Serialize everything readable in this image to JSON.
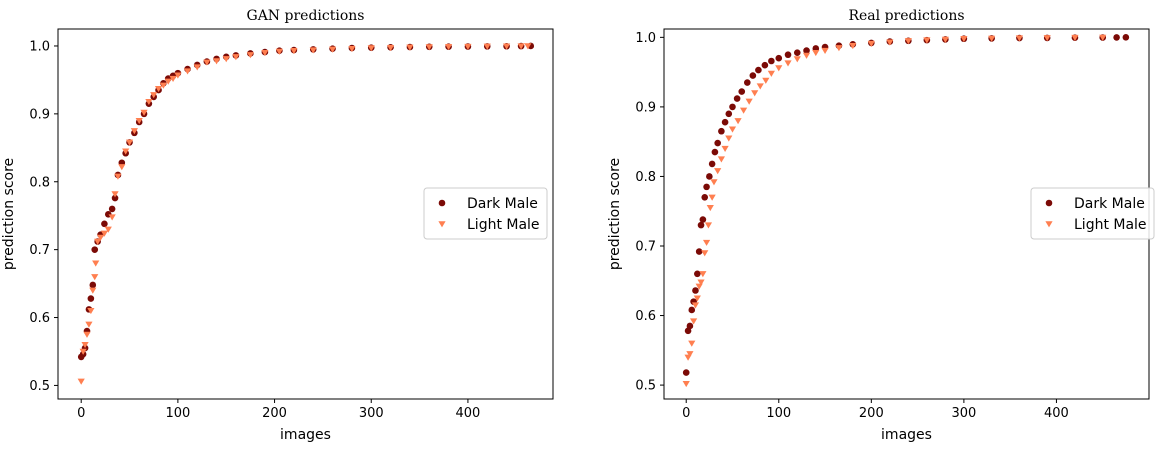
{
  "chart_data": [
    {
      "type": "scatter",
      "title": "GAN predictions",
      "xlabel": "images",
      "ylabel": "prediction score",
      "xlim": [
        -24,
        488
      ],
      "ylim": [
        0.48,
        1.025
      ],
      "xticks": [
        0,
        100,
        200,
        300,
        400
      ],
      "yticks": [
        0.5,
        0.6,
        0.7,
        0.8,
        0.9,
        1.0
      ],
      "xtick_labels": [
        "0",
        "100",
        "200",
        "300",
        "400"
      ],
      "ytick_labels": [
        "0.5",
        "0.6",
        "0.7",
        "0.8",
        "0.9",
        "1.0"
      ],
      "legend_position": "center-right",
      "series": [
        {
          "name": "Dark Male",
          "color": "#7b0a06",
          "marker": "circle",
          "x": [
            0,
            2,
            4,
            6,
            8,
            10,
            12,
            14,
            17,
            20,
            24,
            28,
            32,
            35,
            38,
            42,
            46,
            50,
            55,
            60,
            65,
            70,
            75,
            80,
            85,
            90,
            95,
            100,
            110,
            120,
            130,
            140,
            150,
            160,
            175,
            190,
            205,
            220,
            240,
            260,
            280,
            300,
            320,
            340,
            360,
            380,
            400,
            420,
            440,
            455,
            465
          ],
          "y": [
            0.542,
            0.546,
            0.555,
            0.58,
            0.612,
            0.628,
            0.648,
            0.7,
            0.712,
            0.722,
            0.738,
            0.752,
            0.76,
            0.776,
            0.81,
            0.828,
            0.842,
            0.858,
            0.872,
            0.888,
            0.9,
            0.915,
            0.925,
            0.935,
            0.945,
            0.952,
            0.956,
            0.96,
            0.966,
            0.972,
            0.977,
            0.981,
            0.984,
            0.986,
            0.989,
            0.991,
            0.993,
            0.994,
            0.995,
            0.996,
            0.997,
            0.9975,
            0.998,
            0.9985,
            0.9988,
            0.999,
            0.9992,
            0.9994,
            0.9996,
            0.9998,
            1.0
          ]
        },
        {
          "name": "Light Male",
          "color": "#ff7f50",
          "marker": "triangle-down",
          "x": [
            0,
            2,
            4,
            6,
            8,
            10,
            12,
            14,
            15,
            17,
            20,
            24,
            28,
            32,
            35,
            38,
            42,
            46,
            50,
            55,
            60,
            65,
            70,
            75,
            80,
            85,
            90,
            95,
            100,
            110,
            120,
            130,
            140,
            150,
            160,
            175,
            190,
            205,
            220,
            240,
            260,
            280,
            300,
            320,
            340,
            360,
            380,
            400,
            420,
            440,
            455,
            462
          ],
          "y": [
            0.506,
            0.55,
            0.56,
            0.575,
            0.59,
            0.61,
            0.64,
            0.66,
            0.68,
            0.712,
            0.718,
            0.724,
            0.73,
            0.748,
            0.782,
            0.808,
            0.822,
            0.845,
            0.858,
            0.875,
            0.89,
            0.902,
            0.918,
            0.928,
            0.937,
            0.942,
            0.948,
            0.952,
            0.957,
            0.963,
            0.969,
            0.976,
            0.978,
            0.981,
            0.984,
            0.987,
            0.99,
            0.992,
            0.993,
            0.994,
            0.995,
            0.996,
            0.997,
            0.9975,
            0.998,
            0.9985,
            0.999,
            0.9992,
            0.9994,
            0.9996,
            0.9998,
            1.0
          ]
        }
      ]
    },
    {
      "type": "scatter",
      "title": "Real predictions",
      "xlabel": "images",
      "ylabel": "prediction score",
      "xlim": [
        -24,
        500
      ],
      "ylim": [
        0.48,
        1.012
      ],
      "xticks": [
        0,
        100,
        200,
        300,
        400
      ],
      "yticks": [
        0.5,
        0.6,
        0.7,
        0.8,
        0.9,
        1.0
      ],
      "xtick_labels": [
        "0",
        "100",
        "200",
        "300",
        "400"
      ],
      "ytick_labels": [
        "0.5",
        "0.6",
        "0.7",
        "0.8",
        "0.9",
        "1.0"
      ],
      "legend_position": "center-right",
      "series": [
        {
          "name": "Dark Male",
          "color": "#7b0a06",
          "marker": "circle",
          "x": [
            0,
            2,
            4,
            6,
            8,
            10,
            12,
            14,
            16,
            18,
            20,
            22,
            25,
            28,
            31,
            34,
            38,
            42,
            46,
            50,
            55,
            60,
            66,
            72,
            78,
            85,
            92,
            100,
            110,
            120,
            130,
            140,
            150,
            165,
            180,
            200,
            220,
            240,
            260,
            280,
            300,
            330,
            360,
            390,
            420,
            450,
            465,
            475
          ],
          "y": [
            0.518,
            0.578,
            0.585,
            0.608,
            0.62,
            0.636,
            0.66,
            0.692,
            0.73,
            0.738,
            0.77,
            0.785,
            0.8,
            0.818,
            0.835,
            0.848,
            0.865,
            0.878,
            0.89,
            0.9,
            0.912,
            0.922,
            0.935,
            0.945,
            0.953,
            0.96,
            0.966,
            0.97,
            0.975,
            0.978,
            0.981,
            0.984,
            0.986,
            0.988,
            0.99,
            0.992,
            0.994,
            0.995,
            0.996,
            0.997,
            0.998,
            0.9985,
            0.999,
            0.9992,
            0.9995,
            0.9997,
            0.9999,
            1.0
          ]
        },
        {
          "name": "Light Male",
          "color": "#ff7f50",
          "marker": "triangle-down",
          "x": [
            0,
            2,
            4,
            6,
            8,
            10,
            12,
            14,
            16,
            18,
            20,
            22,
            24,
            26,
            28,
            30,
            34,
            38,
            42,
            46,
            50,
            56,
            62,
            68,
            74,
            80,
            86,
            92,
            100,
            110,
            120,
            130,
            140,
            150,
            165,
            180,
            200,
            220,
            240,
            260,
            280,
            300,
            330,
            360,
            390,
            420,
            450
          ],
          "y": [
            0.502,
            0.54,
            0.545,
            0.56,
            0.592,
            0.615,
            0.625,
            0.642,
            0.648,
            0.66,
            0.69,
            0.705,
            0.73,
            0.755,
            0.77,
            0.792,
            0.808,
            0.825,
            0.84,
            0.855,
            0.868,
            0.88,
            0.895,
            0.908,
            0.92,
            0.93,
            0.938,
            0.948,
            0.956,
            0.963,
            0.969,
            0.974,
            0.978,
            0.981,
            0.985,
            0.988,
            0.991,
            0.993,
            0.995,
            0.996,
            0.997,
            0.998,
            0.9985,
            0.999,
            0.9993,
            0.9996,
            0.9999
          ]
        }
      ]
    }
  ]
}
